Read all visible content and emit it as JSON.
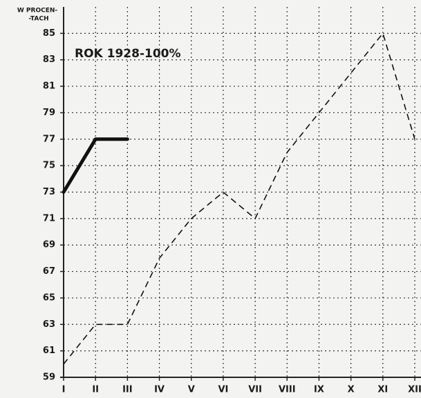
{
  "chart_data": {
    "type": "line",
    "ylabel_lines": [
      "W PROCEN-",
      "-TACH"
    ],
    "annotation": "ROK 1928-100%",
    "categories": [
      "I",
      "II",
      "III",
      "IV",
      "V",
      "VI",
      "VII",
      "VIII",
      "IX",
      "X",
      "XI",
      "XII"
    ],
    "series": [
      {
        "color": "#111111",
        "style": "solid",
        "values": [
          73,
          77,
          77,
          null,
          null,
          null,
          null,
          null,
          null,
          null,
          null,
          null
        ]
      },
      {
        "color": "#111111",
        "style": "dashed",
        "values": [
          60,
          63,
          63,
          68,
          71,
          73,
          71,
          76,
          79,
          82,
          85,
          77
        ]
      }
    ],
    "ylim": [
      59,
      87
    ],
    "yticks": [
      59,
      61,
      63,
      65,
      67,
      69,
      71,
      73,
      75,
      77,
      79,
      81,
      83,
      85
    ],
    "grid": true
  }
}
